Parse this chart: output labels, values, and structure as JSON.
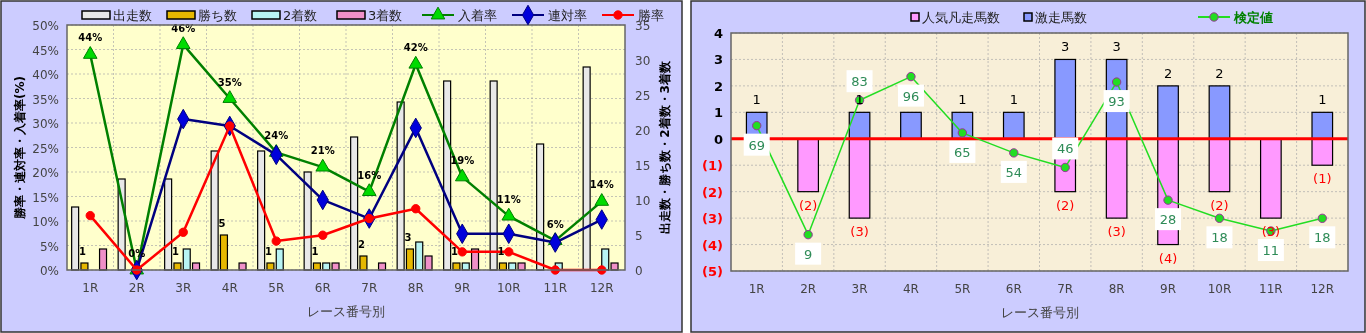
{
  "chart_data": [
    {
      "type": "bar",
      "xlabel": "レース番号別",
      "ylabel": "勝率・連対率・入着率(%)",
      "y2label": "出走数・勝ち数・2着数・3着数",
      "categories": [
        "1R",
        "2R",
        "3R",
        "4R",
        "5R",
        "6R",
        "7R",
        "8R",
        "9R",
        "10R",
        "11R",
        "12R"
      ],
      "ylim": [
        0,
        50
      ],
      "yticks": [
        {
          "value": 0,
          "label": "0%"
        },
        {
          "value": 5,
          "label": "5%"
        },
        {
          "value": 10,
          "label": "10%"
        },
        {
          "value": 15,
          "label": "15%"
        },
        {
          "value": 20,
          "label": "20%"
        },
        {
          "value": 25,
          "label": "25%"
        },
        {
          "value": 30,
          "label": "30%"
        },
        {
          "value": 35,
          "label": "35%"
        },
        {
          "value": 40,
          "label": "40%"
        },
        {
          "value": 45,
          "label": "45%"
        },
        {
          "value": 50,
          "label": "50%"
        }
      ],
      "y2lim": [
        0,
        35
      ],
      "y2ticks": [
        0,
        5,
        10,
        15,
        20,
        25,
        30,
        35
      ],
      "grid": true,
      "legend": "top",
      "series": [
        {
          "name": "出走数",
          "axis": "y2",
          "color": "#e8e8e8",
          "values": [
            9,
            13,
            13,
            17,
            17,
            14,
            19,
            24,
            27,
            27,
            18,
            29
          ]
        },
        {
          "name": "勝ち数",
          "axis": "y2",
          "color": "#e6b800",
          "values": [
            1,
            0,
            1,
            5,
            1,
            1,
            2,
            3,
            1,
            1,
            0,
            0
          ],
          "value_labels": [
            "1",
            null,
            "1",
            "5",
            "1",
            "1",
            "2",
            "3",
            "1",
            "1",
            null,
            null
          ]
        },
        {
          "name": "2着数",
          "axis": "y2",
          "color": "#b8f4f4",
          "values": [
            0,
            0,
            3,
            0,
            3,
            1,
            0,
            4,
            1,
            1,
            1,
            3
          ]
        },
        {
          "name": "3着数",
          "axis": "y2",
          "color": "#f090c8",
          "values": [
            3,
            0,
            1,
            1,
            0,
            1,
            1,
            2,
            3,
            1,
            0,
            1
          ]
        },
        {
          "name": "入着率",
          "type": "line",
          "axis": "y",
          "color": "#008000",
          "marker": "triangle",
          "values": [
            44,
            0,
            46,
            35,
            24,
            21,
            16,
            42,
            19,
            11,
            6,
            14
          ],
          "value_labels": [
            "44%",
            "0%",
            "46%",
            "35%",
            "24%",
            "21%",
            "16%",
            "42%",
            "19%",
            "11%",
            "6%",
            "14%"
          ]
        },
        {
          "name": "連対率",
          "type": "line",
          "axis": "y",
          "color": "#000080",
          "marker": "diamond",
          "values": [
            null,
            0,
            30.8,
            29.4,
            23.5,
            14.3,
            10.5,
            29,
            7.4,
            7.4,
            5.6,
            10.3
          ]
        },
        {
          "name": "勝率",
          "type": "line",
          "axis": "y",
          "color": "#ff0000",
          "marker": "circle",
          "values": [
            11.1,
            0,
            7.7,
            29.4,
            5.9,
            7.1,
            10.5,
            12.5,
            3.7,
            3.7,
            0,
            0
          ]
        }
      ]
    },
    {
      "type": "bar",
      "xlabel": "レース番号別",
      "categories": [
        "1R",
        "2R",
        "3R",
        "4R",
        "5R",
        "6R",
        "7R",
        "8R",
        "9R",
        "10R",
        "11R",
        "12R"
      ],
      "stacked": true,
      "ylim": [
        -5,
        4
      ],
      "yticks": [
        {
          "value": -5,
          "label": "(5)"
        },
        {
          "value": -4,
          "label": "(4)"
        },
        {
          "value": -3,
          "label": "(3)"
        },
        {
          "value": -2,
          "label": "(2)"
        },
        {
          "value": -1,
          "label": "(1)"
        },
        0,
        1,
        2,
        3,
        4
      ],
      "y2lim": [
        -11,
        120
      ],
      "grid": true,
      "legend": "top",
      "ref_lines": [
        {
          "axis": "y",
          "value": 0,
          "color": "#ff0000"
        }
      ],
      "series": [
        {
          "name": "人気凡走馬数",
          "axis": "y",
          "color": "#ff99ff",
          "values": [
            0,
            -2,
            -3,
            0,
            0,
            0,
            -2,
            -3,
            -4,
            -2,
            -3,
            -1
          ],
          "value_labels": [
            null,
            "(2)",
            "(3)",
            null,
            null,
            null,
            "(2)",
            "(3)",
            "(4)",
            "(2)",
            "(3)",
            "(1)"
          ]
        },
        {
          "name": "激走馬数",
          "axis": "y",
          "color": "#8899ff",
          "values": [
            1,
            0,
            1,
            1,
            1,
            1,
            3,
            3,
            2,
            2,
            0,
            1
          ],
          "value_labels": [
            "1",
            null,
            "1",
            null,
            "1",
            "1",
            "3",
            "3",
            "2",
            "2",
            null,
            "1"
          ]
        },
        {
          "name": "検定値",
          "type": "line",
          "axis": "y2",
          "color": "#22dd22",
          "marker": "circle",
          "values": [
            69,
            9,
            83,
            96,
            65,
            54,
            46,
            93,
            28,
            18,
            11,
            18
          ],
          "value_labels": [
            "69",
            "9",
            "83",
            "96",
            "65",
            "54",
            "46",
            "93",
            "28",
            "18",
            "11",
            "18"
          ]
        }
      ]
    }
  ]
}
